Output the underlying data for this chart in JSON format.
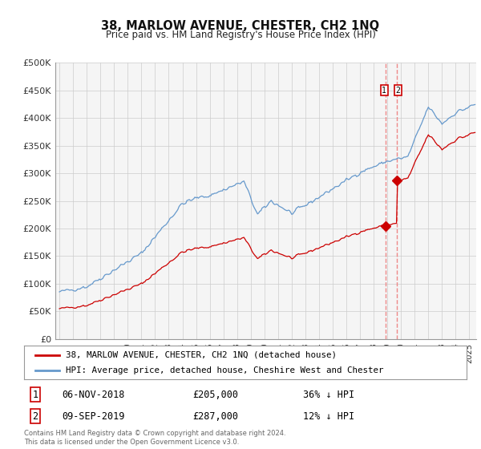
{
  "title": "38, MARLOW AVENUE, CHESTER, CH2 1NQ",
  "subtitle": "Price paid vs. HM Land Registry's House Price Index (HPI)",
  "legend_line1": "38, MARLOW AVENUE, CHESTER, CH2 1NQ (detached house)",
  "legend_line2": "HPI: Average price, detached house, Cheshire West and Chester",
  "sale1_date": "06-NOV-2018",
  "sale1_price": 205000,
  "sale1_label": "36% ↓ HPI",
  "sale2_date": "09-SEP-2019",
  "sale2_price": 287000,
  "sale2_label": "12% ↓ HPI",
  "sale1_year": 2018.85,
  "sale2_year": 2019.69,
  "ylim_min": 0,
  "ylim_max": 500000,
  "yticks": [
    0,
    50000,
    100000,
    150000,
    200000,
    250000,
    300000,
    350000,
    400000,
    450000,
    500000
  ],
  "ytick_labels": [
    "£0",
    "£50K",
    "£100K",
    "£150K",
    "£200K",
    "£250K",
    "£300K",
    "£350K",
    "£400K",
    "£450K",
    "£500K"
  ],
  "red_color": "#cc0000",
  "blue_color": "#6699cc",
  "vline_color": "#ee8888",
  "footnote": "Contains HM Land Registry data © Crown copyright and database right 2024.\nThis data is licensed under the Open Government Licence v3.0.",
  "background_color": "#f5f5f5",
  "grid_color": "#cccccc"
}
